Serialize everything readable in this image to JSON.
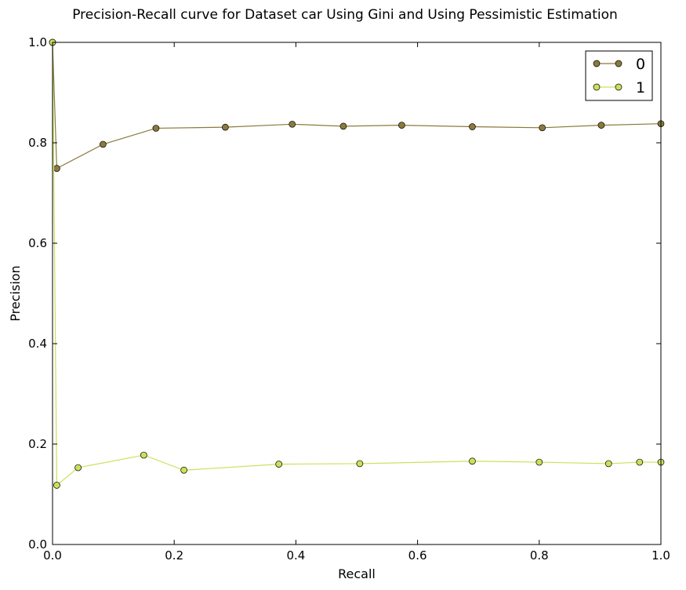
{
  "chart_data": {
    "type": "line",
    "title": "Precision-Recall curve for Dataset car Using Gini and Using Pessimistic Estimation",
    "xlabel": "Recall",
    "ylabel": "Precision",
    "xlim": [
      0,
      1
    ],
    "ylim": [
      0,
      1
    ],
    "xticks": [
      "0.0",
      "0.2",
      "0.4",
      "0.6",
      "0.8",
      "1.0"
    ],
    "yticks": [
      "0.0",
      "0.2",
      "0.4",
      "0.6",
      "0.8",
      "1.0"
    ],
    "grid": false,
    "legend_position": "top-right",
    "series": [
      {
        "name": "0",
        "color": "#8b7a3c",
        "x": [
          0.0,
          0.007,
          0.083,
          0.17,
          0.284,
          0.394,
          0.478,
          0.574,
          0.69,
          0.805,
          0.902,
          1.0
        ],
        "y": [
          1.0,
          0.749,
          0.797,
          0.829,
          0.831,
          0.837,
          0.833,
          0.835,
          0.832,
          0.83,
          0.835,
          0.838
        ]
      },
      {
        "name": "1",
        "color": "#c9e25a",
        "x": [
          0.0,
          0.007,
          0.042,
          0.15,
          0.216,
          0.372,
          0.505,
          0.69,
          0.8,
          0.914,
          0.965,
          1.0
        ],
        "y": [
          1.0,
          0.118,
          0.153,
          0.178,
          0.148,
          0.16,
          0.161,
          0.166,
          0.164,
          0.161,
          0.164,
          0.164
        ]
      }
    ]
  }
}
